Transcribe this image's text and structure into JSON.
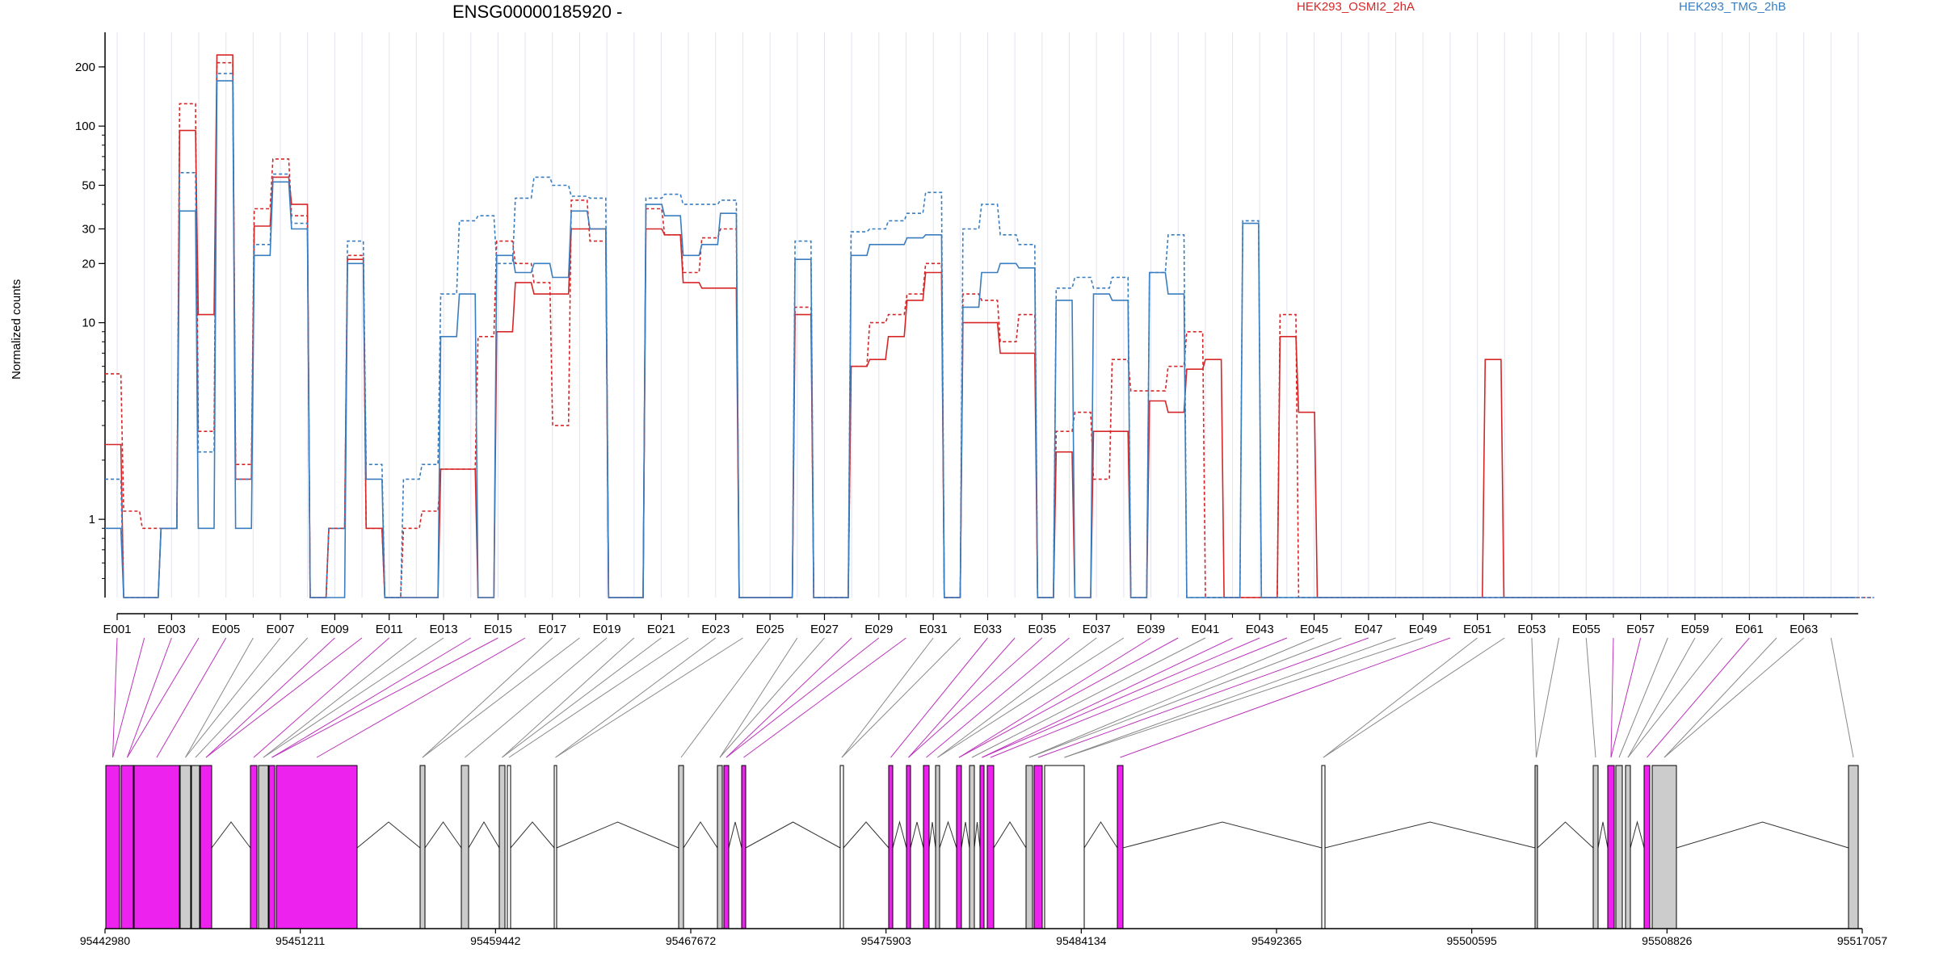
{
  "chart_data": {
    "type": "line",
    "title": "ENSG00000185920 -",
    "ylabel": "Normalized counts",
    "yscale": "log",
    "ylim": [
      0.4,
      300
    ],
    "y_ticks": [
      1,
      10,
      20,
      30,
      50,
      100,
      200
    ],
    "y_tick_labels": [
      "1",
      "10",
      "20",
      "30",
      "50",
      "100",
      "200"
    ],
    "exon_labels": [
      "E001",
      "E003",
      "E005",
      "E007",
      "E009",
      "E011",
      "E013",
      "E015",
      "E017",
      "E019",
      "E021",
      "E023",
      "E025",
      "E027",
      "E029",
      "E031",
      "E033",
      "E035",
      "E037",
      "E039",
      "E041",
      "E043",
      "E045",
      "E047",
      "E049",
      "E051",
      "E053",
      "E055",
      "E057",
      "E059",
      "E061",
      "E063"
    ],
    "genomic_positions": [
      "95442980",
      "95451211",
      "95459442",
      "95467672",
      "95475903",
      "95484134",
      "95492365",
      "95500595",
      "95508826",
      "95517057"
    ],
    "series": [
      {
        "name": "HEK293_OSMI2_2hA",
        "color": "#d62728",
        "dashed": false,
        "values": [
          2.4,
          0.4,
          0.4,
          0.9,
          95,
          11,
          230,
          1.6,
          31,
          55,
          40,
          0.4,
          0.9,
          21,
          0.9,
          0.4,
          0.4,
          0.4,
          1.8,
          1.8,
          0.4,
          9,
          16,
          14,
          14,
          30,
          30,
          0.4,
          0.4,
          30,
          28,
          16,
          15,
          15,
          0.4,
          0.4,
          0.4,
          11,
          0.4,
          0.4,
          6,
          6.5,
          8.5,
          13,
          18,
          0.4,
          10,
          10,
          7,
          7,
          0.4,
          2.2,
          0.4,
          2.8,
          2.8,
          0.4,
          4,
          3.5,
          5.8,
          6.5,
          0.4,
          0.4,
          0.4,
          8.5,
          3.5,
          0.4,
          0.4,
          0.4,
          0.4,
          0.4,
          0.4,
          0.4,
          0.4,
          0.4,
          6.5,
          0.4,
          0.4,
          0.4,
          0.4,
          0.4,
          0.4,
          0.4,
          0.4,
          0.4,
          0.4,
          0.4,
          0.4,
          0.4,
          0.4,
          0.4,
          0.4,
          0.4,
          0.4,
          0.4
        ]
      },
      {
        "name": "HEK293_OSMI2_2hA rep",
        "color": "#d62728",
        "dashed": true,
        "values": [
          5.5,
          1.1,
          0.9,
          0.9,
          130,
          2.8,
          210,
          1.9,
          38,
          68,
          35,
          0.4,
          0.9,
          22,
          0.9,
          0.4,
          0.9,
          1.1,
          1.8,
          1.8,
          8.5,
          26,
          20,
          16,
          3,
          42,
          26,
          0.4,
          0.4,
          38,
          28,
          18,
          27,
          30,
          0.4,
          0.4,
          0.4,
          12,
          0.4,
          0.4,
          6,
          10,
          11,
          14,
          20,
          0.4,
          14,
          13,
          8,
          11,
          0.4,
          2.8,
          3.5,
          1.6,
          6.5,
          4.5,
          4.5,
          6,
          9,
          0.4,
          0.4,
          0.4,
          0.4,
          11,
          0.4,
          0.4,
          0.4,
          0.4,
          0.4,
          0.4,
          0.4,
          0.4,
          0.4,
          0.4,
          0.4,
          0.4,
          0.4,
          0.4,
          0.4,
          0.4,
          0.4,
          0.4,
          0.4,
          0.4,
          0.4,
          0.4,
          0.4,
          0.4,
          0.4,
          0.4,
          0.4,
          0.4,
          0.4,
          0.4,
          0.4
        ]
      },
      {
        "name": "HEK293_TMG_2hB",
        "color": "#3a7ebf",
        "dashed": false,
        "values": [
          0.9,
          0.4,
          0.4,
          0.9,
          37,
          0.9,
          170,
          0.9,
          22,
          52,
          30,
          0.4,
          0.4,
          20,
          1.6,
          0.4,
          0.4,
          0.4,
          8.5,
          14,
          0.4,
          22,
          18,
          20,
          17,
          37,
          30,
          0.4,
          0.4,
          40,
          35,
          22,
          25,
          36,
          0.4,
          0.4,
          0.4,
          21,
          0.4,
          0.4,
          22,
          25,
          25,
          27,
          28,
          0.4,
          12,
          18,
          20,
          19,
          0.4,
          13,
          0.4,
          14,
          13,
          0.4,
          18,
          14,
          0.4,
          0.4,
          0.4,
          32,
          0.4,
          0.4,
          0.4,
          0.4,
          0.4,
          0.4,
          0.4,
          0.4,
          0.4,
          0.4,
          0.4,
          0.4,
          0.4,
          0.4,
          0.4,
          0.4,
          0.4,
          0.4,
          0.4,
          0.4,
          0.4,
          0.4,
          0.4,
          0.4,
          0.4,
          0.4,
          0.4,
          0.4,
          0.4,
          0.4,
          0.4,
          0.4
        ]
      },
      {
        "name": "HEK293_TMG_2hB rep",
        "color": "#3a7ebf",
        "dashed": true,
        "values": [
          1.6,
          0.4,
          0.4,
          0.9,
          58,
          2.2,
          185,
          1.6,
          25,
          57,
          32,
          0.4,
          0.9,
          26,
          1.9,
          0.4,
          1.6,
          1.9,
          14,
          33,
          35,
          20,
          43,
          55,
          50,
          44,
          43,
          0.4,
          0.4,
          43,
          45,
          40,
          40,
          42,
          0.4,
          0.4,
          0.4,
          26,
          0.4,
          0.4,
          29,
          30,
          33,
          36,
          46,
          0.4,
          30,
          40,
          28,
          25,
          0.4,
          15,
          17,
          15,
          17,
          0.4,
          18,
          28,
          0.4,
          0.4,
          0.4,
          33,
          0.4,
          0.4,
          0.4,
          0.4,
          0.4,
          0.4,
          0.4,
          0.4,
          0.4,
          0.4,
          0.4,
          0.4,
          0.4,
          0.4,
          0.4,
          0.4,
          0.4,
          0.4,
          0.4,
          0.4,
          0.4,
          0.4,
          0.4,
          0.4,
          0.4,
          0.4,
          0.4,
          0.4,
          0.4,
          0.4,
          0.4,
          0.4,
          0.4
        ]
      }
    ]
  }
}
